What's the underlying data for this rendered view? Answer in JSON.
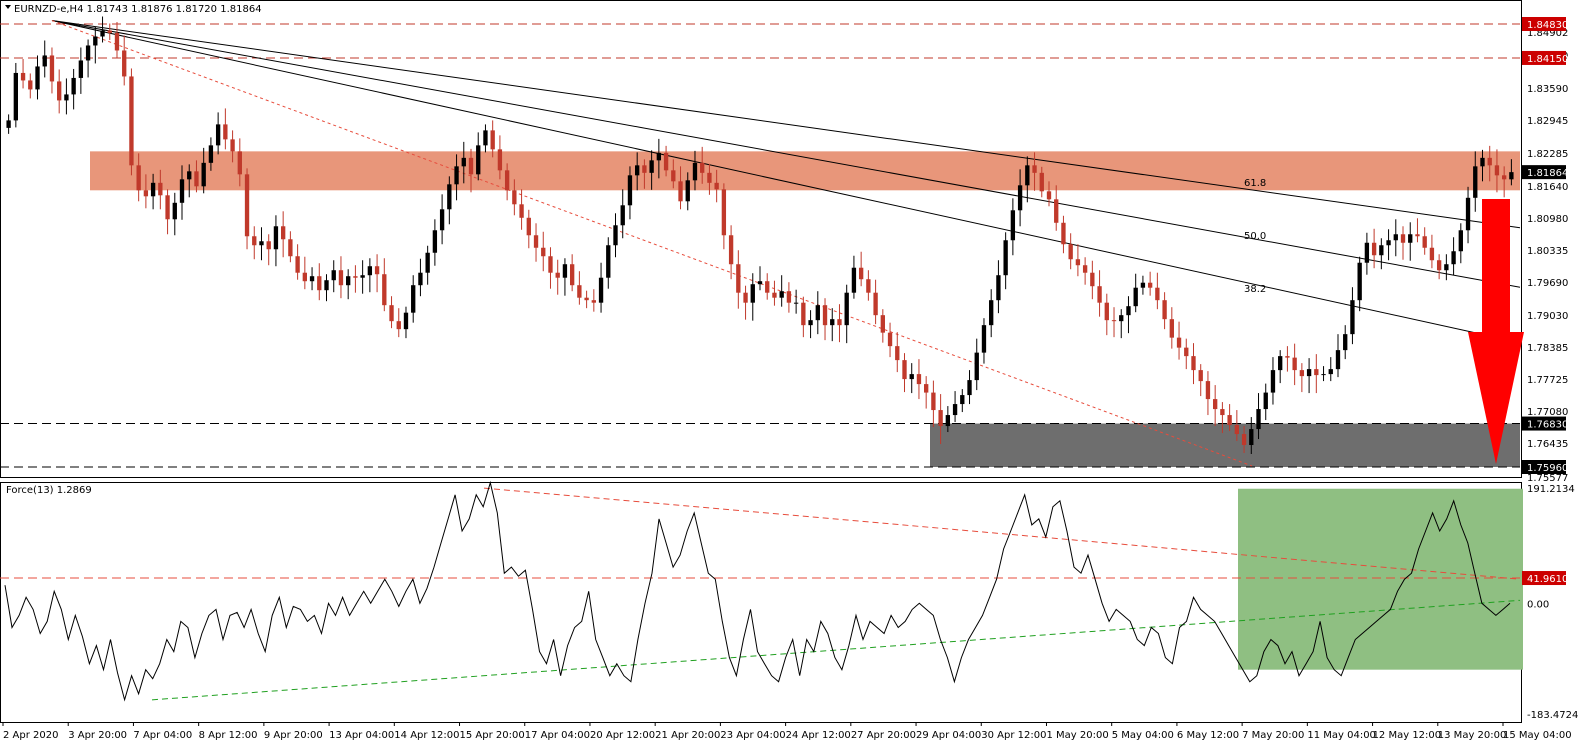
{
  "chart_data": [
    {
      "type": "candlestick",
      "title": "EURNZD-e,H4  1.81743 1.81876 1.81720 1.81864",
      "symbol": "EURNZD-e",
      "timeframe": "H4",
      "ohlc_last": {
        "open": 1.81743,
        "high": 1.81876,
        "low": 1.8172,
        "close": 1.81864
      },
      "ylim": [
        1.75577,
        1.84902
      ],
      "price_ticks": [
        "1.84902",
        "1.84150",
        "1.83590",
        "1.82945",
        "1.82285",
        "1.81640",
        "1.80980",
        "1.80335",
        "1.79690",
        "1.79030",
        "1.78385",
        "1.77725",
        "1.77080",
        "1.76435",
        "1.75577"
      ],
      "x_ticks": [
        "2 Apr 2020",
        "3 Apr 20:00",
        "7 Apr 04:00",
        "8 Apr 12:00",
        "9 Apr 20:00",
        "13 Apr 04:00",
        "14 Apr 12:00",
        "15 Apr 20:00",
        "17 Apr 04:00",
        "20 Apr 12:00",
        "21 Apr 20:00",
        "23 Apr 04:00",
        "24 Apr 12:00",
        "27 Apr 20:00",
        "29 Apr 04:00",
        "30 Apr 12:00",
        "1 May 20:00",
        "5 May 04:00",
        "6 May 12:00",
        "7 May 20:00",
        "11 May 04:00",
        "12 May 12:00",
        "13 May 20:00",
        "15 May 04:00"
      ],
      "levels": [
        {
          "label": "1.84830",
          "value": 1.8483,
          "color": "#c0392b"
        },
        {
          "label": "1.84150",
          "value": 1.8415,
          "color": "#c0392b"
        },
        {
          "label": "1.76830",
          "value": 1.7683,
          "color": "#000000"
        },
        {
          "label": "1.75960",
          "value": 1.7596,
          "color": "#000000"
        }
      ],
      "current_price": {
        "label": "1.81864",
        "value": 1.81864
      },
      "resistance_zone": {
        "low": 1.815,
        "high": 1.8228,
        "color": "#e8967a"
      },
      "support_zone": {
        "low": 1.7596,
        "high": 1.7683,
        "color": "#6e6e6e"
      },
      "fib_fan_labels": [
        "61.8",
        "50.0",
        "38.2"
      ],
      "closes": [
        1.829,
        1.8385,
        1.837,
        1.8352,
        1.8398,
        1.842,
        1.8368,
        1.833,
        1.8342,
        1.8375,
        1.841,
        1.844,
        1.8458,
        1.847,
        1.8465,
        1.843,
        1.8378,
        1.82,
        1.815,
        1.8138,
        1.8165,
        1.814,
        1.8092,
        1.8125,
        1.8172,
        1.8188,
        1.8158,
        1.8205,
        1.824,
        1.8282,
        1.8252,
        1.8228,
        1.8182,
        1.8058,
        1.804,
        1.8048,
        1.8032,
        1.8078,
        1.8052,
        1.8018,
        1.7985,
        1.7968,
        1.7978,
        1.795,
        1.797,
        1.799,
        1.796,
        1.7978,
        1.7975,
        1.798,
        1.7998,
        1.7982,
        1.792,
        1.7888,
        1.7872,
        1.7905,
        1.796,
        1.7985,
        1.8025,
        1.807,
        1.8112,
        1.8162,
        1.8198,
        1.8215,
        1.8182,
        1.824,
        1.827,
        1.8232,
        1.819,
        1.815,
        1.8122,
        1.8095,
        1.806,
        1.8035,
        1.8018,
        1.7985,
        1.7975,
        1.8002,
        1.796,
        1.7935,
        1.793,
        1.7925,
        1.7975,
        1.804,
        1.808,
        1.812,
        1.818,
        1.82,
        1.8185,
        1.821,
        1.8225,
        1.819,
        1.8168,
        1.8128,
        1.817,
        1.8205,
        1.8185,
        1.8165,
        1.8152,
        1.806,
        1.8002,
        1.7945,
        1.7925,
        1.7962,
        1.7968,
        1.7945,
        1.7935,
        1.7948,
        1.7925,
        1.7925,
        1.788,
        1.789,
        1.792,
        1.788,
        1.7892,
        1.788,
        1.7945,
        1.7995,
        1.7972,
        1.7945,
        1.79,
        1.7865,
        1.7838,
        1.781,
        1.7772,
        1.7782,
        1.7762,
        1.7745,
        1.771,
        1.7678,
        1.77,
        1.7722,
        1.774,
        1.777,
        1.7825,
        1.788,
        1.793,
        1.798,
        1.805,
        1.811,
        1.816,
        1.82,
        1.8185,
        1.8148,
        1.8132,
        1.8085,
        1.8042,
        1.8012,
        1.8,
        1.7985,
        1.7958,
        1.7925,
        1.789,
        1.7888,
        1.79,
        1.7918,
        1.7955,
        1.7965,
        1.7955,
        1.793,
        1.7892,
        1.7855,
        1.7835,
        1.7818,
        1.779,
        1.7768,
        1.7732,
        1.7712,
        1.77,
        1.768,
        1.7662,
        1.764,
        1.7672,
        1.7712,
        1.7745,
        1.779,
        1.7818,
        1.7815,
        1.779,
        1.7778,
        1.7792,
        1.778,
        1.7782,
        1.7792,
        1.783,
        1.7862,
        1.793,
        1.8005,
        1.8045,
        1.802,
        1.804,
        1.805,
        1.8062,
        1.8045,
        1.8062,
        1.8058,
        1.8035,
        1.801,
        1.799,
        1.8002,
        1.8028,
        1.807,
        1.8135,
        1.8198,
        1.8215,
        1.82,
        1.818,
        1.8172,
        1.81864
      ]
    },
    {
      "type": "line",
      "title": "Force(13) 1.2869",
      "indicator": "Force(13)",
      "last_value": 1.2869,
      "ylim": [
        -183.4724,
        191.2134
      ],
      "y_ticks": [
        "191.2134",
        "0.00",
        "-183.4724"
      ],
      "level": {
        "label": "41.9610",
        "value": 41.961
      },
      "values": [
        30,
        -40,
        -20,
        10,
        -10,
        -50,
        -30,
        20,
        -10,
        -60,
        -20,
        -55,
        -100,
        -70,
        -110,
        -60,
        -115,
        -160,
        -120,
        -150,
        -110,
        -125,
        -100,
        -60,
        -80,
        -30,
        -40,
        -90,
        -50,
        -20,
        -10,
        -60,
        -20,
        -15,
        -40,
        -10,
        -50,
        -80,
        -20,
        10,
        -40,
        -5,
        -10,
        -30,
        -20,
        -50,
        0,
        -20,
        10,
        -20,
        0,
        20,
        0,
        20,
        40,
        20,
        -5,
        20,
        40,
        0,
        25,
        60,
        100,
        140,
        180,
        120,
        140,
        180,
        160,
        200,
        150,
        50,
        60,
        45,
        55,
        -10,
        -80,
        -100,
        -60,
        -120,
        -70,
        -40,
        -30,
        20,
        -60,
        -90,
        -120,
        -100,
        -120,
        -130,
        -60,
        0,
        50,
        140,
        100,
        60,
        80,
        120,
        150,
        100,
        50,
        40,
        -30,
        -90,
        -120,
        -60,
        -10,
        -80,
        -100,
        -120,
        -130,
        -90,
        -60,
        -120,
        -60,
        -80,
        -30,
        -50,
        -90,
        -110,
        -70,
        -20,
        -60,
        -30,
        -40,
        -50,
        -20,
        -40,
        -30,
        -10,
        0,
        -10,
        -20,
        -60,
        -90,
        -130,
        -90,
        -60,
        -40,
        -20,
        10,
        40,
        90,
        120,
        150,
        180,
        130,
        140,
        110,
        160,
        170,
        120,
        60,
        50,
        80,
        40,
        0,
        -30,
        -10,
        -20,
        -30,
        -60,
        -70,
        -40,
        -50,
        -90,
        -100,
        -40,
        -30,
        10,
        -10,
        -20,
        -30,
        -50,
        -70,
        -90,
        -110,
        -130,
        -120,
        -80,
        -60,
        -70,
        -100,
        -80,
        -120,
        -100,
        -80,
        -30,
        -90,
        -110,
        -120,
        -90,
        -60,
        -50,
        -40,
        -30,
        -20,
        -10,
        20,
        40,
        50,
        90,
        120,
        150,
        120,
        140,
        170,
        130,
        100,
        50,
        0,
        -10,
        -20,
        -10,
        0
      ]
    }
  ]
}
